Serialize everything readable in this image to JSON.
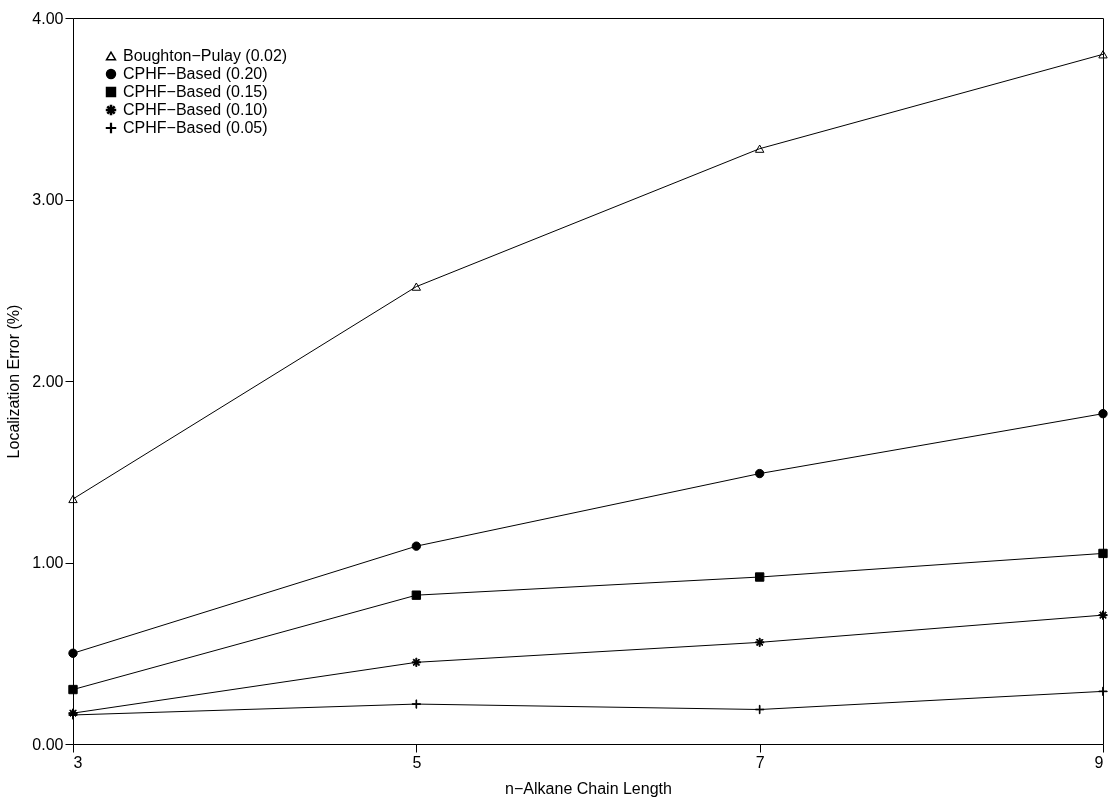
{
  "chart_data": {
    "type": "line",
    "xlabel": "n−Alkane Chain Length",
    "ylabel": "Localization Error (%)",
    "x": [
      3,
      5,
      7,
      9
    ],
    "xlim": [
      3,
      9
    ],
    "xticks": [
      3,
      5,
      7,
      9
    ],
    "ylim": [
      0,
      4
    ],
    "yticks": [
      {
        "value": 0,
        "label": "0.00"
      },
      {
        "value": 1,
        "label": "1.00"
      },
      {
        "value": 2,
        "label": "2.00"
      },
      {
        "value": 3,
        "label": "3.00"
      },
      {
        "value": 4,
        "label": "4.00"
      }
    ],
    "grid": false,
    "legend": "top left",
    "line_style": "solid",
    "series": [
      {
        "name": "Boughton−Pulay (0.02)",
        "color": "#000000",
        "marker": "triangle",
        "values": [
          1.35,
          2.52,
          3.28,
          3.8
        ]
      },
      {
        "name": "CPHF−Based (0.20)",
        "color": "#000000",
        "marker": "circle",
        "values": [
          0.5,
          1.09,
          1.49,
          1.82
        ]
      },
      {
        "name": "CPHF−Based (0.15)",
        "color": "#000000",
        "marker": "square",
        "values": [
          0.3,
          0.82,
          0.92,
          1.05
        ]
      },
      {
        "name": "CPHF−Based (0.10)",
        "color": "#000000",
        "marker": "star",
        "values": [
          0.17,
          0.45,
          0.56,
          0.71
        ]
      },
      {
        "name": "CPHF−Based (0.05)",
        "color": "#000000",
        "marker": "cross",
        "values": [
          0.16,
          0.22,
          0.19,
          0.29
        ]
      }
    ]
  }
}
